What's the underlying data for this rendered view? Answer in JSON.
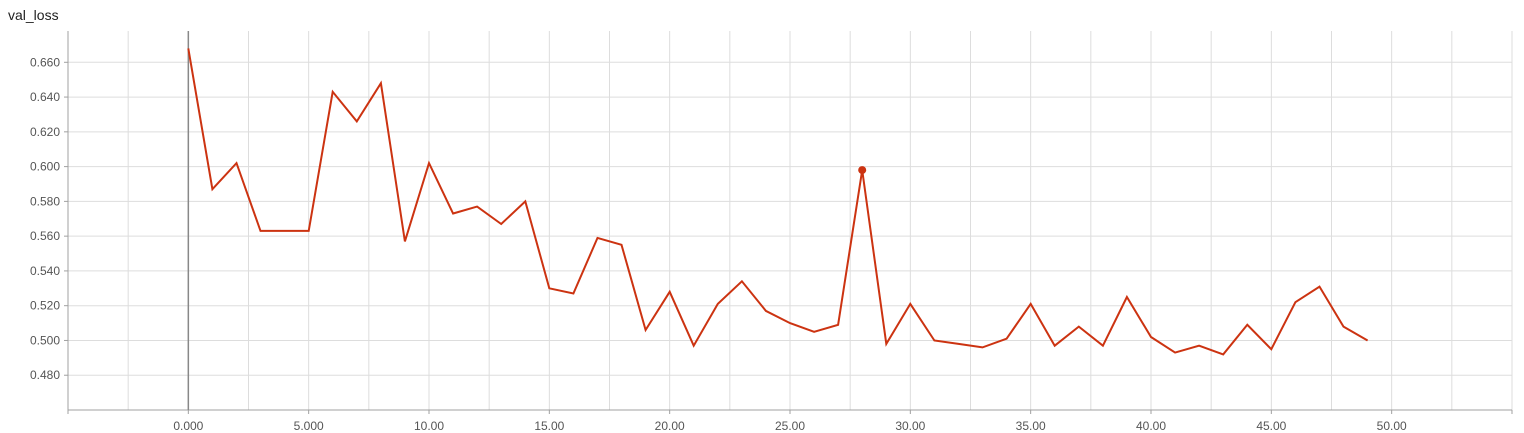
{
  "chart_data": {
    "type": "line",
    "title": "val_loss",
    "xlabel": "",
    "ylabel": "",
    "xlim": [
      -5,
      55
    ],
    "ylim": [
      0.46,
      0.678
    ],
    "x_ticks": [
      0,
      5,
      10,
      15,
      20,
      25,
      30,
      35,
      40,
      45,
      50
    ],
    "x_tick_labels": [
      "0.000",
      "5.000",
      "10.00",
      "15.00",
      "20.00",
      "25.00",
      "30.00",
      "35.00",
      "40.00",
      "45.00",
      "50.00"
    ],
    "y_ticks": [
      0.48,
      0.5,
      0.52,
      0.54,
      0.56,
      0.58,
      0.6,
      0.62,
      0.64,
      0.66
    ],
    "y_tick_labels": [
      "0.480",
      "0.500",
      "0.520",
      "0.540",
      "0.560",
      "0.580",
      "0.600",
      "0.620",
      "0.640",
      "0.660"
    ],
    "grid": true,
    "series": [
      {
        "color": "#cc3311",
        "x": [
          0,
          1,
          2,
          3,
          4,
          5,
          6,
          7,
          8,
          9,
          10,
          11,
          12,
          13,
          14,
          15,
          16,
          17,
          18,
          19,
          20,
          21,
          22,
          23,
          24,
          25,
          26,
          27,
          28,
          29,
          30,
          31,
          32,
          33,
          34,
          35,
          36,
          37,
          38,
          39,
          40,
          41,
          42,
          43,
          44,
          45,
          46,
          47,
          48,
          49
        ],
        "values": [
          0.668,
          0.587,
          0.602,
          0.563,
          0.563,
          0.563,
          0.643,
          0.626,
          0.648,
          0.557,
          0.602,
          0.573,
          0.577,
          0.567,
          0.58,
          0.53,
          0.527,
          0.559,
          0.555,
          0.506,
          0.528,
          0.497,
          0.521,
          0.534,
          0.517,
          0.51,
          0.505,
          0.509,
          0.598,
          0.498,
          0.521,
          0.5,
          0.498,
          0.496,
          0.501,
          0.521,
          0.497,
          0.508,
          0.497,
          0.525,
          0.502,
          0.493,
          0.497,
          0.492,
          0.509,
          0.495,
          0.522,
          0.531,
          0.508,
          0.5
        ]
      }
    ],
    "highlight_index": 28
  },
  "colors": {
    "grid": "#dddddd",
    "axis": "#a0a0a0",
    "zero_line": "#888888"
  }
}
